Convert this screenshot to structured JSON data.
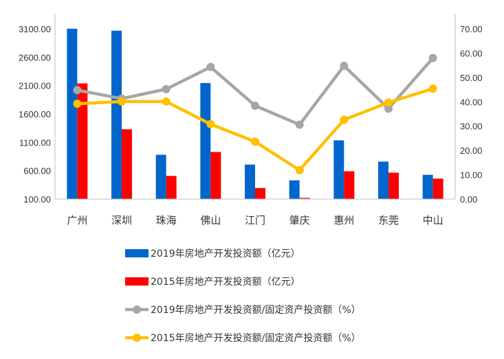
{
  "chart_data": {
    "type": "bar+line",
    "title": "",
    "categories": [
      "广州",
      "深圳",
      "珠海",
      "佛山",
      "江门",
      "肇庆",
      "惠州",
      "东莞",
      "中山"
    ],
    "bar_series": [
      {
        "name": "2019年房地产开发投资额（亿元）",
        "color": "#0066CC",
        "values": [
          3102,
          3067,
          880,
          2145,
          708,
          430,
          1135,
          760,
          527
        ]
      },
      {
        "name": "2015年房地产开发投资额（亿元）",
        "color": "#FF0000",
        "values": [
          2138,
          1330,
          508,
          930,
          295,
          120,
          590,
          565,
          460
        ]
      }
    ],
    "line_series": [
      {
        "name": "2019年房地产开发投资额/固定资产投资额（%）",
        "color": "#A6A6A6",
        "values": [
          44.8,
          41.3,
          45.2,
          54.3,
          38.4,
          30.6,
          54.8,
          37.2,
          58.0
        ]
      },
      {
        "name": "2015年房地产开发投资额/固定资产投资额（%）",
        "color": "#FFC000",
        "values": [
          39.2,
          40.1,
          40.1,
          30.8,
          23.6,
          11.9,
          32.6,
          39.7,
          45.4
        ]
      }
    ],
    "y_left": {
      "ylim": [
        100,
        3100
      ],
      "ticks": [
        "100.00",
        "600.00",
        "1100.00",
        "1600.00",
        "2100.00",
        "2600.00",
        "3100.00"
      ]
    },
    "y_right": {
      "ylim": [
        0,
        70
      ],
      "ticks": [
        "0.00",
        "10.00",
        "20.00",
        "30.00",
        "40.00",
        "50.00",
        "60.00",
        "70.00"
      ]
    },
    "legend_position": "bottom",
    "grid": false
  }
}
